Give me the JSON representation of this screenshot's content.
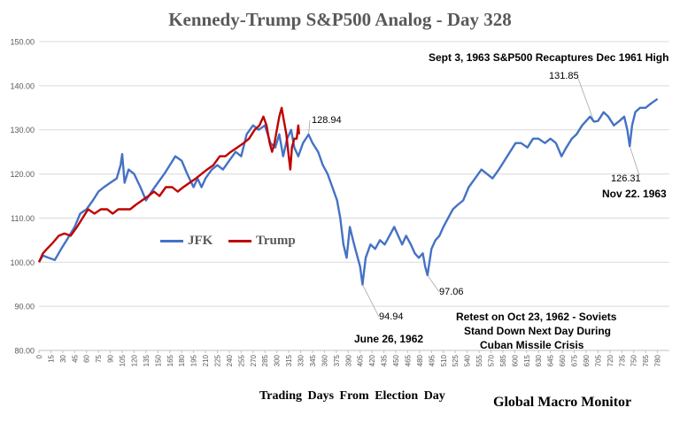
{
  "chart_data": {
    "type": "line",
    "title": "Kennedy-Trump  S&P500 Analog   - Day 328",
    "xlabel": "Trading  Days From  Election  Day",
    "ylabel": "",
    "xlim": [
      0,
      795
    ],
    "ylim": [
      80,
      150
    ],
    "grid": true,
    "legend": "center-left",
    "y_ticks": [
      "80.00",
      "90.00",
      "100.00",
      "110.00",
      "120.00",
      "130.00",
      "140.00",
      "150.00"
    ],
    "x_ticks": [
      "0",
      "15",
      "30",
      "45",
      "60",
      "75",
      "90",
      "105",
      "120",
      "135",
      "150",
      "165",
      "180",
      "195",
      "210",
      "225",
      "240",
      "255",
      "270",
      "285",
      "300",
      "315",
      "330",
      "345",
      "360",
      "375",
      "390",
      "405",
      "420",
      "435",
      "450",
      "465",
      "480",
      "495",
      "510",
      "525",
      "540",
      "555",
      "570",
      "585",
      "600",
      "615",
      "630",
      "645",
      "660",
      "675",
      "690",
      "705",
      "720",
      "735",
      "750",
      "765",
      "780"
    ],
    "series": [
      {
        "name": "JFK",
        "color": "#4472C4",
        "points": [
          [
            0,
            100
          ],
          [
            5,
            101.5
          ],
          [
            12,
            101
          ],
          [
            20,
            100.5
          ],
          [
            28,
            103
          ],
          [
            35,
            105
          ],
          [
            45,
            108
          ],
          [
            52,
            111
          ],
          [
            60,
            112
          ],
          [
            68,
            114
          ],
          [
            75,
            116
          ],
          [
            82,
            117
          ],
          [
            90,
            118
          ],
          [
            98,
            119
          ],
          [
            103,
            122
          ],
          [
            105,
            124.5
          ],
          [
            108,
            118
          ],
          [
            113,
            121
          ],
          [
            120,
            120
          ],
          [
            128,
            117
          ],
          [
            135,
            114
          ],
          [
            142,
            116
          ],
          [
            150,
            118
          ],
          [
            158,
            120
          ],
          [
            165,
            122
          ],
          [
            172,
            124
          ],
          [
            180,
            123
          ],
          [
            187,
            120
          ],
          [
            195,
            117
          ],
          [
            200,
            119
          ],
          [
            205,
            117
          ],
          [
            210,
            119
          ],
          [
            218,
            121
          ],
          [
            225,
            122
          ],
          [
            232,
            121
          ],
          [
            240,
            123
          ],
          [
            248,
            125
          ],
          [
            255,
            124
          ],
          [
            262,
            129
          ],
          [
            270,
            131
          ],
          [
            277,
            130
          ],
          [
            285,
            131
          ],
          [
            292,
            127
          ],
          [
            298,
            126
          ],
          [
            303,
            129
          ],
          [
            308,
            124
          ],
          [
            313,
            128
          ],
          [
            318,
            130
          ],
          [
            322,
            126
          ],
          [
            327,
            124
          ],
          [
            333,
            127
          ],
          [
            340,
            128.94
          ],
          [
            345,
            127
          ],
          [
            352,
            125
          ],
          [
            358,
            122
          ],
          [
            364,
            120
          ],
          [
            370,
            117
          ],
          [
            376,
            114
          ],
          [
            380,
            110
          ],
          [
            384,
            104
          ],
          [
            388,
            101
          ],
          [
            392,
            108
          ],
          [
            396,
            105
          ],
          [
            399,
            103
          ],
          [
            402,
            101
          ],
          [
            405,
            99
          ],
          [
            408,
            94.94
          ],
          [
            412,
            101
          ],
          [
            418,
            104
          ],
          [
            424,
            103
          ],
          [
            430,
            105
          ],
          [
            436,
            104
          ],
          [
            442,
            106
          ],
          [
            448,
            108
          ],
          [
            453,
            106
          ],
          [
            458,
            104
          ],
          [
            463,
            106
          ],
          [
            469,
            104
          ],
          [
            474,
            102
          ],
          [
            479,
            101
          ],
          [
            484,
            102
          ],
          [
            487,
            99
          ],
          [
            490,
            97.06
          ],
          [
            495,
            103
          ],
          [
            500,
            105
          ],
          [
            505,
            106
          ],
          [
            510,
            108
          ],
          [
            516,
            110
          ],
          [
            522,
            112
          ],
          [
            528,
            113
          ],
          [
            535,
            114
          ],
          [
            542,
            117
          ],
          [
            550,
            119
          ],
          [
            558,
            121
          ],
          [
            565,
            120
          ],
          [
            572,
            119
          ],
          [
            580,
            121
          ],
          [
            587,
            123
          ],
          [
            594,
            125
          ],
          [
            601,
            127
          ],
          [
            608,
            127
          ],
          [
            616,
            126
          ],
          [
            623,
            128
          ],
          [
            630,
            128
          ],
          [
            638,
            127
          ],
          [
            645,
            128
          ],
          [
            652,
            127
          ],
          [
            659,
            124
          ],
          [
            665,
            126
          ],
          [
            672,
            128
          ],
          [
            678,
            129
          ],
          [
            685,
            131
          ],
          [
            690,
            132
          ],
          [
            695,
            133
          ],
          [
            700,
            131.85
          ],
          [
            705,
            132
          ],
          [
            712,
            134
          ],
          [
            718,
            133
          ],
          [
            725,
            131
          ],
          [
            732,
            132
          ],
          [
            738,
            133
          ],
          [
            742,
            130
          ],
          [
            745,
            126.31
          ],
          [
            748,
            131
          ],
          [
            752,
            134
          ],
          [
            758,
            135
          ],
          [
            765,
            135
          ],
          [
            772,
            136
          ],
          [
            780,
            137
          ]
        ]
      },
      {
        "name": "Trump",
        "color": "#C00000",
        "points": [
          [
            0,
            100
          ],
          [
            5,
            102
          ],
          [
            10,
            103
          ],
          [
            18,
            104.5
          ],
          [
            25,
            106
          ],
          [
            32,
            106.5
          ],
          [
            40,
            106
          ],
          [
            48,
            108
          ],
          [
            55,
            110
          ],
          [
            62,
            112
          ],
          [
            70,
            111
          ],
          [
            78,
            112
          ],
          [
            86,
            112
          ],
          [
            93,
            111
          ],
          [
            100,
            112
          ],
          [
            108,
            112
          ],
          [
            115,
            112
          ],
          [
            122,
            113
          ],
          [
            130,
            114
          ],
          [
            138,
            115
          ],
          [
            145,
            116
          ],
          [
            152,
            115
          ],
          [
            160,
            117
          ],
          [
            168,
            117
          ],
          [
            175,
            116
          ],
          [
            182,
            117
          ],
          [
            190,
            118
          ],
          [
            198,
            119
          ],
          [
            205,
            120
          ],
          [
            212,
            121
          ],
          [
            220,
            122
          ],
          [
            228,
            124
          ],
          [
            235,
            124
          ],
          [
            242,
            125
          ],
          [
            250,
            126
          ],
          [
            258,
            127
          ],
          [
            265,
            128
          ],
          [
            272,
            130
          ],
          [
            278,
            131
          ],
          [
            283,
            133
          ],
          [
            287,
            131
          ],
          [
            291,
            127
          ],
          [
            294,
            125
          ],
          [
            297,
            127
          ],
          [
            300,
            130
          ],
          [
            303,
            133
          ],
          [
            306,
            135
          ],
          [
            309,
            132
          ],
          [
            312,
            129
          ],
          [
            315,
            124
          ],
          [
            317,
            121
          ],
          [
            319,
            126
          ],
          [
            322,
            128
          ],
          [
            325,
            128
          ],
          [
            327,
            131
          ],
          [
            328,
            129
          ]
        ]
      }
    ],
    "annotations": [
      {
        "text": "128.94",
        "x": 340,
        "y": 128.94
      },
      {
        "text": "94.94",
        "x": 408,
        "y": 94.94
      },
      {
        "text": "June 26, 1962",
        "bold": true
      },
      {
        "text": "97.06",
        "x": 490,
        "y": 97.06
      },
      {
        "text": "Retest on Oct 23, 1962 - Soviets",
        "bold": true
      },
      {
        "text": "Stand Down Next Day During",
        "bold": true
      },
      {
        "text": "Cuban Missile Crisis",
        "bold": true
      },
      {
        "text": "Sept 3, 1963  S&P500 Recaptures Dec 1961  High",
        "bold": true
      },
      {
        "text": "131.85",
        "x": 700,
        "y": 131.85
      },
      {
        "text": "126.31",
        "x": 745,
        "y": 126.31
      },
      {
        "text": "Nov 22. 1963",
        "bold": true
      }
    ]
  },
  "brand": "Global Macro Monitor"
}
